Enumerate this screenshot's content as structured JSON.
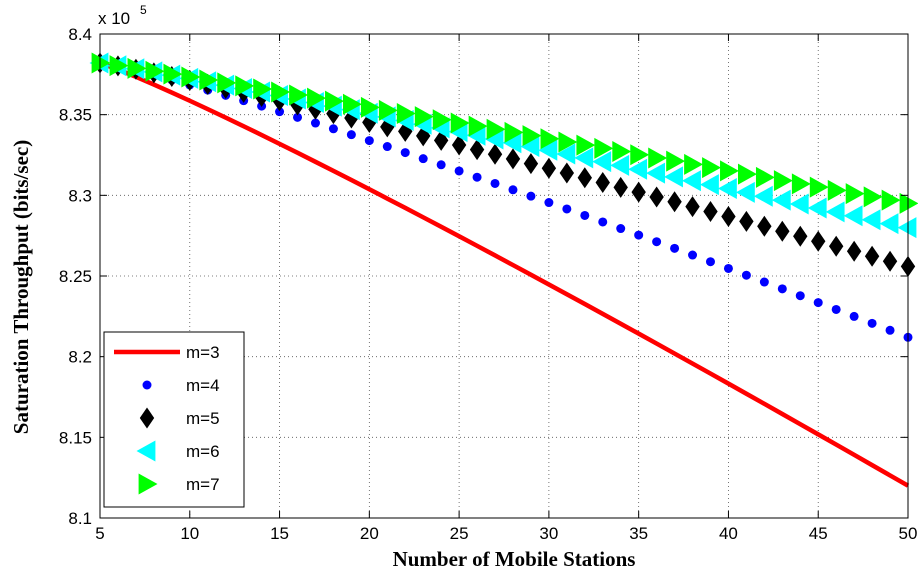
{
  "chart_data": {
    "type": "line",
    "xlabel": "Number of Mobile Stations",
    "ylabel": "Saturation Throughput (bits/sec)",
    "y_exponent_label": {
      "base": "x 10",
      "power": "5"
    },
    "xlim": [
      5,
      50
    ],
    "ylim": [
      8.1,
      8.4
    ],
    "xticks": [
      "5",
      "10",
      "15",
      "20",
      "25",
      "30",
      "35",
      "40",
      "45",
      "50"
    ],
    "yticks": [
      "8.1",
      "8.15",
      "8.2",
      "8.25",
      "8.3",
      "8.35",
      "8.4"
    ],
    "grid": true,
    "legend_position": "bottom-left",
    "series": [
      {
        "name": "m=3",
        "marker": "line",
        "color": "#ff0000",
        "x_start": 5,
        "x_end": 50,
        "x_step": 1,
        "y_start": 8.382,
        "y_end": 8.12,
        "curve_exponent": 1.1
      },
      {
        "name": "m=4",
        "marker": "dot",
        "color": "#0000ff",
        "x_start": 5,
        "x_end": 50,
        "x_step": 1,
        "y_start": 8.382,
        "y_end": 8.212,
        "curve_exponent": 1.15
      },
      {
        "name": "m=5",
        "marker": "diamond",
        "color": "#000000",
        "x_start": 5,
        "x_end": 50,
        "x_step": 1,
        "y_start": 8.382,
        "y_end": 8.256,
        "curve_exponent": 1.12
      },
      {
        "name": "m=6",
        "marker": "triangle-left",
        "color": "#00ffff",
        "x_start": 5,
        "x_end": 50,
        "x_step": 1,
        "y_start": 8.382,
        "y_end": 8.28,
        "curve_exponent": 1.08
      },
      {
        "name": "m=7",
        "marker": "triangle-right",
        "color": "#00ff00",
        "x_start": 5,
        "x_end": 50,
        "x_step": 1,
        "y_start": 8.382,
        "y_end": 8.295,
        "curve_exponent": 1.05
      }
    ]
  }
}
